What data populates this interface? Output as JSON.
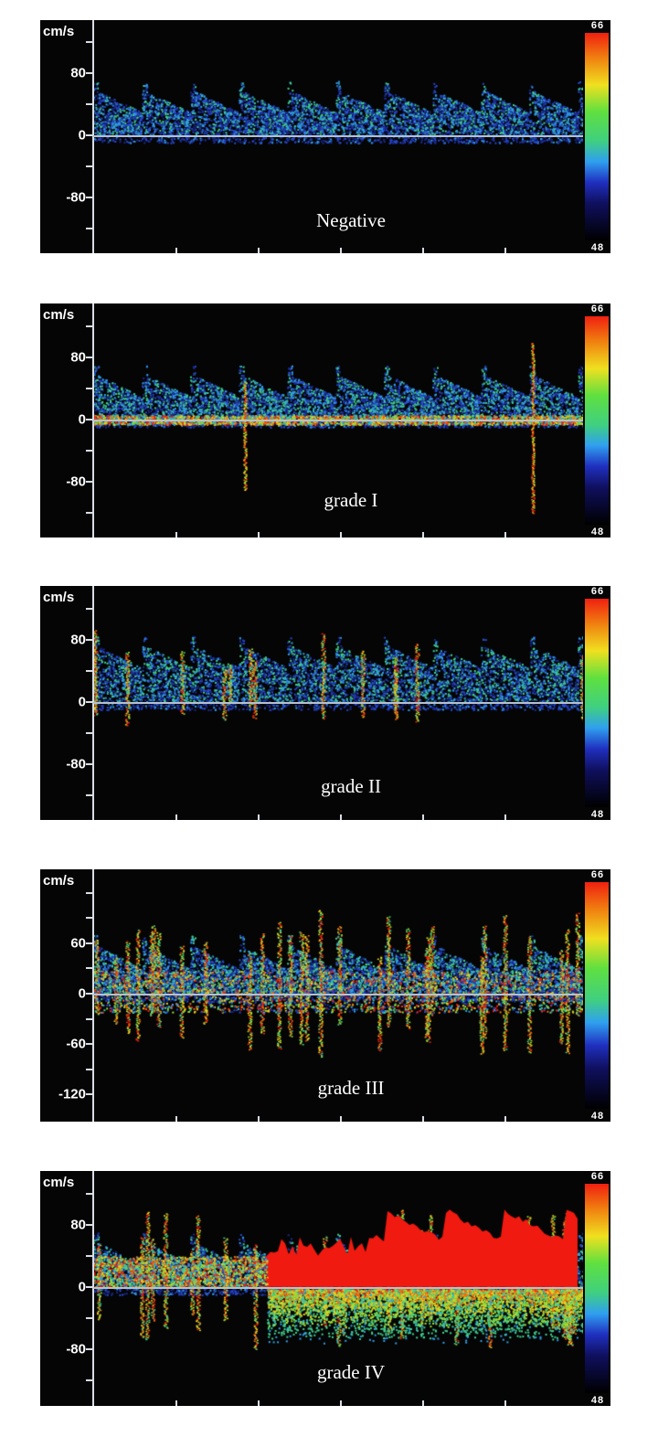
{
  "chart_data": [
    {
      "type": "heatmap",
      "title": "Negative",
      "ylabel": "cm/s",
      "yticks": [
        "80",
        "0",
        "-80"
      ],
      "colorbar": {
        "max": "66",
        "min": "48"
      }
    },
    {
      "type": "heatmap",
      "title": "grade  I",
      "ylabel": "cm/s",
      "yticks": [
        "80",
        "0",
        "-80"
      ],
      "colorbar": {
        "max": "66",
        "min": "48"
      }
    },
    {
      "type": "heatmap",
      "title": "grade  II",
      "ylabel": "cm/s",
      "yticks": [
        "80",
        "0",
        "-80"
      ],
      "colorbar": {
        "max": "66",
        "min": "48"
      }
    },
    {
      "type": "heatmap",
      "title": "grade  III",
      "ylabel": "cm/s",
      "yticks": [
        "60",
        "0",
        "-60",
        "-120"
      ],
      "colorbar": {
        "max": "66",
        "min": "48"
      }
    },
    {
      "type": "heatmap",
      "title": "grade  IV",
      "ylabel": "cm/s",
      "yticks": [
        "80",
        "0",
        "-80"
      ],
      "colorbar": {
        "max": "66",
        "min": "48"
      }
    }
  ],
  "colorscale": [
    "#000000",
    "#101060",
    "#2030c0",
    "#30a0f0",
    "#40d080",
    "#60e040",
    "#f0e020",
    "#f08010",
    "#f02010"
  ]
}
